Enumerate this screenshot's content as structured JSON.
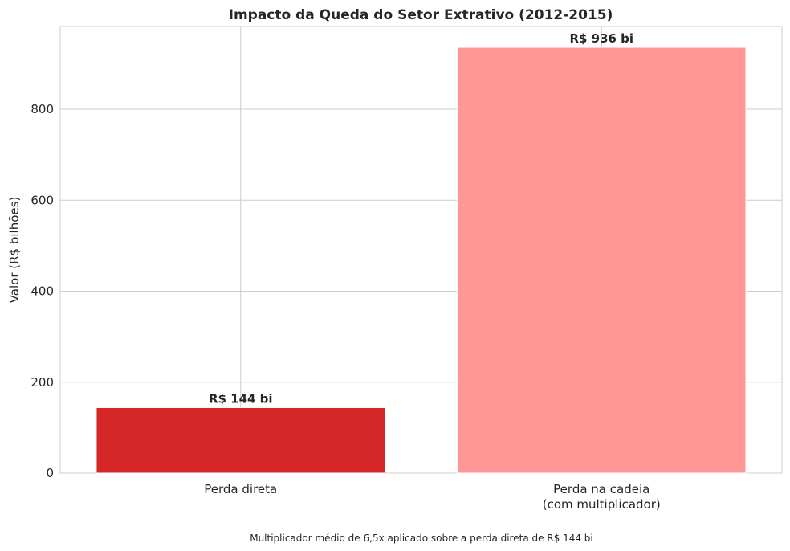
{
  "chart_data": {
    "type": "bar",
    "title": "Impacto da Queda do Setor Extrativo (2012-2015)",
    "ylabel": "Valor (R$ bilhões)",
    "xlabel": "",
    "categories": [
      [
        "Perda direta"
      ],
      [
        "Perda na cadeia",
        "(com multiplicador)"
      ]
    ],
    "values": [
      144,
      936
    ],
    "value_labels": [
      "R$ 144 bi",
      "R$ 936 bi"
    ],
    "colors": [
      "#d62728",
      "#ff9896"
    ],
    "ylim": [
      0,
      982
    ],
    "yticks": [
      0,
      200,
      400,
      600,
      800
    ],
    "grid": true,
    "footnote": "Multiplicador médio de 6,5x aplicado sobre a perda direta de R$ 144 bi"
  }
}
